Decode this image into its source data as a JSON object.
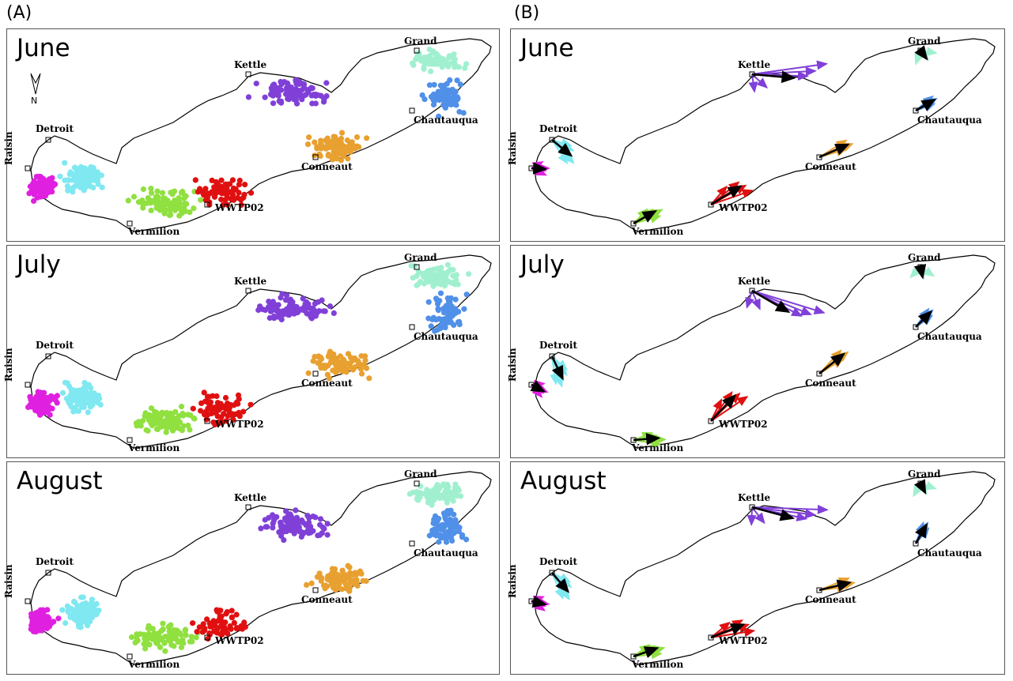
{
  "column_labels": [
    "(A)",
    "(B)"
  ],
  "months": [
    "June",
    "July",
    "August"
  ],
  "north_label": "N",
  "sites": [
    {
      "id": "raisin",
      "name": "Raisin",
      "color": "#e020e0"
    },
    {
      "id": "detroit",
      "name": "Detroit",
      "color": "#7fe8f0"
    },
    {
      "id": "vermilion",
      "name": "Vermilion",
      "color": "#90e040"
    },
    {
      "id": "wwtp02",
      "name": "WWTP02",
      "color": "#e01010"
    },
    {
      "id": "conneaut",
      "name": "Conneaut",
      "color": "#e8a030"
    },
    {
      "id": "chautauqua",
      "name": "Chautauqua",
      "color": "#5090e8"
    },
    {
      "id": "kettle",
      "name": "Kettle",
      "color": "#8040d8"
    },
    {
      "id": "grand",
      "name": "Grand",
      "color": "#a0f0d0"
    }
  ],
  "mean_arrow_color": "#000000"
}
